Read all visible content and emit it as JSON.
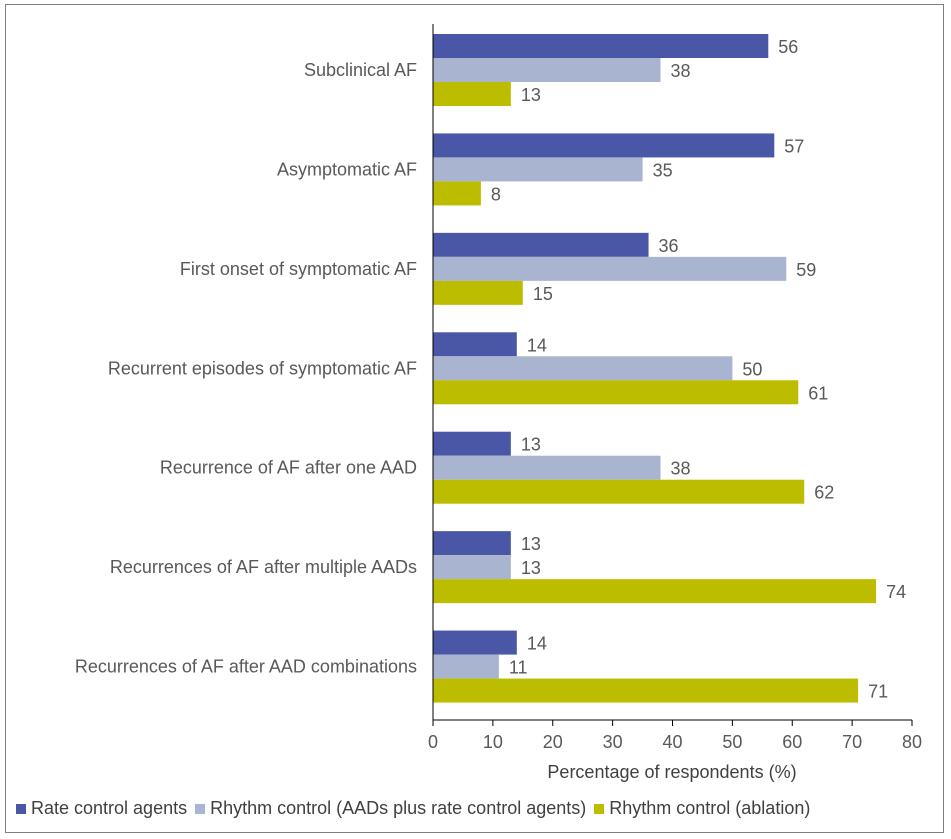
{
  "chart_data": {
    "type": "bar",
    "orientation": "horizontal",
    "title": "",
    "xlabel": "Percentage of respondents (%)",
    "ylabel": "",
    "xlim": [
      0,
      80
    ],
    "xticks": [
      "0",
      "10",
      "20",
      "30",
      "40",
      "50",
      "60",
      "70",
      "80"
    ],
    "grid": false,
    "legend_position": "bottom",
    "categories": [
      "Subclinical AF",
      "Asymptomatic AF",
      "First onset of symptomatic AF",
      "Recurrent episodes of symptomatic AF",
      "Recurrence of AF after one AAD",
      "Recurrences of AF after multiple AADs",
      "Recurrences of AF after AAD combinations"
    ],
    "series": [
      {
        "name": "Rate control agents",
        "color": "#4a56a6",
        "values": [
          56,
          57,
          36,
          14,
          13,
          13,
          14
        ]
      },
      {
        "name": "Rhythm control (AADs plus rate control agents)",
        "color": "#a9b4d1",
        "values": [
          38,
          35,
          59,
          50,
          38,
          13,
          11
        ]
      },
      {
        "name": "Rhythm control (ablation)",
        "color": "#bdbd00",
        "values": [
          13,
          8,
          15,
          61,
          62,
          74,
          71
        ]
      }
    ]
  }
}
